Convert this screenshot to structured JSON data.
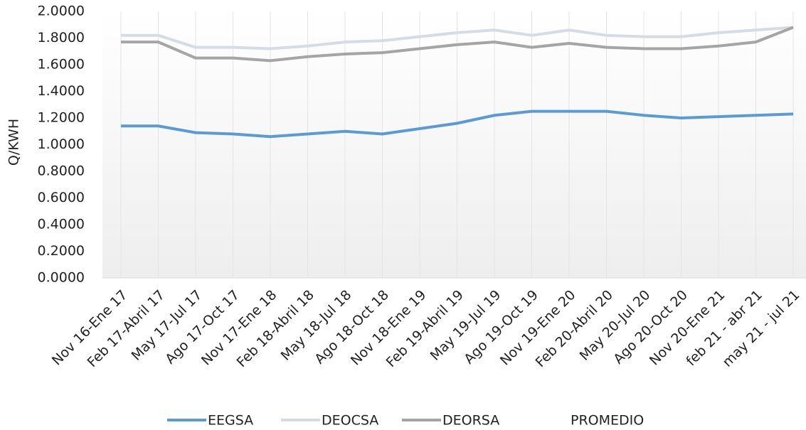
{
  "chart_data": {
    "type": "line",
    "y_label": "Q/KWH",
    "categories": [
      "Nov 16-Ene 17",
      "Feb 17-Abril 17",
      "May 17-Jul 17",
      "Ago 17-Oct 17",
      "Nov 17-Ene 18",
      "Feb 18-Abril 18",
      "May 18-Jul 18",
      "Ago 18-Oct 18",
      "Nov 18-Ene 19",
      "Feb 19-Abril 19",
      "May 19-Jul 19",
      "Ago 19-Oct 19",
      "Nov 19-Ene 20",
      "Feb 20-Abril 20",
      "May 20-Jul 20",
      "Ago 20-Oct 20",
      "Nov 20-Ene 21",
      "feb 21 - abr 21",
      "may 21 - jul 21"
    ],
    "series": [
      {
        "name": "EEGSA",
        "color": "#5b9bd5",
        "values": [
          1.14,
          1.14,
          1.09,
          1.08,
          1.06,
          1.08,
          1.1,
          1.08,
          1.12,
          1.16,
          1.22,
          1.25,
          1.25,
          1.25,
          1.22,
          1.2,
          1.21,
          1.22,
          1.23
        ]
      },
      {
        "name": "DEOCSA",
        "color": "#d6dce4",
        "values": [
          1.82,
          1.82,
          1.73,
          1.73,
          1.72,
          1.74,
          1.77,
          1.78,
          1.81,
          1.84,
          1.86,
          1.82,
          1.86,
          1.82,
          1.81,
          1.81,
          1.84,
          1.86,
          1.88
        ]
      },
      {
        "name": "DEORSA",
        "color": "#a5a5a5",
        "values": [
          1.77,
          1.77,
          1.65,
          1.65,
          1.63,
          1.66,
          1.68,
          1.69,
          1.72,
          1.75,
          1.77,
          1.73,
          1.76,
          1.73,
          1.72,
          1.72,
          1.74,
          1.77,
          1.88
        ]
      },
      {
        "name": "PROMEDIO",
        "color": "#ffffff",
        "values": [
          null,
          null,
          null,
          null,
          null,
          null,
          null,
          null,
          null,
          null,
          null,
          null,
          null,
          null,
          null,
          null,
          null,
          null,
          null
        ]
      }
    ],
    "ylim": [
      0,
      2
    ],
    "yticks": [
      {
        "value": 0,
        "label": "0.0000"
      },
      {
        "value": 0.2,
        "label": "0.2000"
      },
      {
        "value": 0.4,
        "label": "0.4000"
      },
      {
        "value": 0.6,
        "label": "0.6000"
      },
      {
        "value": 0.8,
        "label": "0.8000"
      },
      {
        "value": 1,
        "label": "1.0000"
      },
      {
        "value": 1.2,
        "label": "1.2000"
      },
      {
        "value": 1.4,
        "label": "1.4000"
      },
      {
        "value": 1.6,
        "label": "1.6000"
      },
      {
        "value": 1.8,
        "label": "1.8000"
      },
      {
        "value": 2,
        "label": "2.0000"
      }
    ],
    "grid": true,
    "legend": "bottom"
  }
}
